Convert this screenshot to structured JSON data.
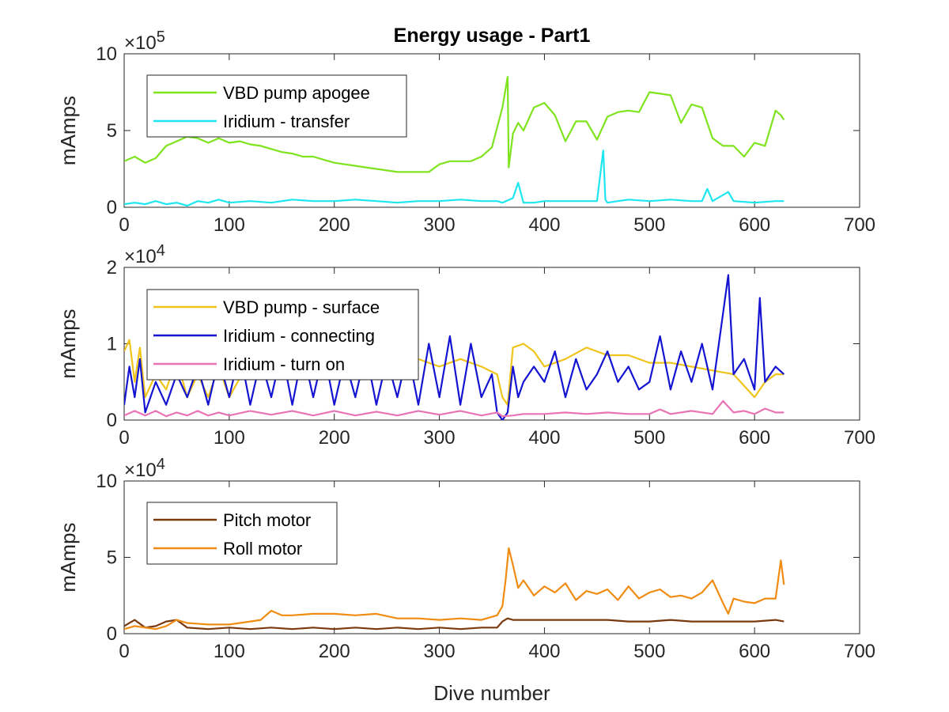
{
  "chart_data": [
    {
      "type": "line",
      "title": "Energy usage - Part1",
      "xlabel": "",
      "ylabel": "mAmps",
      "xlim": [
        0,
        700
      ],
      "ylim": [
        0,
        10
      ],
      "y_multiplier": "×10^5",
      "y_multiplier_base": "×10",
      "y_multiplier_exp": "5",
      "xticks": [
        "0",
        "100",
        "200",
        "300",
        "400",
        "500",
        "600",
        "700"
      ],
      "yticks": [
        "0",
        "5",
        "10"
      ],
      "legend_position": "top-left",
      "series": [
        {
          "name": "VBD pump apogee",
          "color": "#7fe31e",
          "x": [
            0,
            10,
            20,
            30,
            40,
            50,
            60,
            70,
            80,
            90,
            100,
            110,
            120,
            130,
            140,
            150,
            160,
            170,
            180,
            190,
            200,
            210,
            220,
            230,
            240,
            250,
            260,
            270,
            280,
            290,
            300,
            310,
            320,
            330,
            340,
            350,
            360,
            365,
            366,
            370,
            375,
            380,
            390,
            400,
            410,
            420,
            430,
            440,
            450,
            460,
            470,
            480,
            490,
            500,
            510,
            520,
            530,
            540,
            550,
            560,
            570,
            580,
            590,
            600,
            610,
            620,
            625,
            628
          ],
          "y": [
            3.0,
            3.3,
            2.9,
            3.2,
            4.0,
            4.3,
            4.6,
            4.5,
            4.2,
            4.5,
            4.2,
            4.3,
            4.1,
            4.0,
            3.8,
            3.6,
            3.5,
            3.3,
            3.3,
            3.1,
            2.9,
            2.8,
            2.7,
            2.6,
            2.5,
            2.4,
            2.3,
            2.3,
            2.3,
            2.3,
            2.8,
            3.0,
            3.0,
            3.0,
            3.3,
            3.9,
            6.5,
            8.5,
            2.6,
            4.8,
            5.5,
            5.0,
            6.5,
            6.8,
            6.0,
            4.3,
            5.6,
            5.6,
            4.4,
            5.9,
            6.2,
            6.3,
            6.2,
            7.5,
            7.4,
            7.3,
            5.5,
            6.7,
            6.5,
            4.5,
            4.0,
            4.0,
            3.3,
            4.2,
            4.0,
            6.3,
            6.0,
            5.7
          ]
        },
        {
          "name": "Iridium - transfer",
          "color": "#1ee6f0",
          "x": [
            0,
            10,
            20,
            30,
            40,
            50,
            60,
            70,
            80,
            90,
            100,
            120,
            140,
            160,
            180,
            200,
            220,
            240,
            260,
            280,
            300,
            320,
            340,
            355,
            360,
            370,
            375,
            380,
            390,
            400,
            420,
            440,
            450,
            456,
            458,
            460,
            470,
            480,
            500,
            520,
            540,
            550,
            555,
            560,
            575,
            580,
            600,
            620,
            628
          ],
          "y": [
            0.2,
            0.3,
            0.2,
            0.4,
            0.2,
            0.3,
            0.1,
            0.4,
            0.3,
            0.5,
            0.3,
            0.4,
            0.3,
            0.5,
            0.4,
            0.4,
            0.5,
            0.4,
            0.3,
            0.4,
            0.4,
            0.5,
            0.4,
            0.4,
            0.3,
            0.6,
            1.6,
            0.3,
            0.3,
            0.4,
            0.4,
            0.4,
            0.4,
            3.7,
            0.5,
            0.3,
            0.4,
            0.5,
            0.4,
            0.5,
            0.4,
            0.4,
            1.2,
            0.4,
            1.0,
            0.4,
            0.3,
            0.4,
            0.4
          ]
        }
      ]
    },
    {
      "type": "line",
      "title": "",
      "xlabel": "",
      "ylabel": "mAmps",
      "xlim": [
        0,
        700
      ],
      "ylim": [
        0,
        2
      ],
      "y_multiplier": "×10^4",
      "y_multiplier_base": "×10",
      "y_multiplier_exp": "4",
      "xticks": [
        "0",
        "100",
        "200",
        "300",
        "400",
        "500",
        "600",
        "700"
      ],
      "yticks": [
        "0",
        "1",
        "2"
      ],
      "legend_position": "top-left",
      "series": [
        {
          "name": "VBD pump - surface",
          "color": "#f0c41a",
          "x": [
            0,
            5,
            10,
            15,
            20,
            30,
            40,
            50,
            60,
            70,
            80,
            90,
            100,
            120,
            140,
            160,
            180,
            200,
            220,
            240,
            260,
            280,
            300,
            320,
            340,
            355,
            360,
            365,
            370,
            380,
            390,
            400,
            420,
            440,
            460,
            480,
            500,
            520,
            540,
            560,
            580,
            600,
            610,
            620,
            628
          ],
          "y": [
            0.9,
            1.05,
            0.5,
            0.95,
            0.3,
            0.6,
            0.4,
            0.8,
            0.3,
            0.6,
            0.3,
            0.7,
            0.3,
            0.8,
            0.6,
            0.9,
            0.7,
            0.85,
            0.7,
            0.85,
            0.6,
            0.8,
            0.7,
            0.8,
            0.7,
            0.6,
            0.3,
            0.2,
            0.95,
            1.0,
            0.9,
            0.7,
            0.8,
            0.95,
            0.85,
            0.85,
            0.75,
            0.75,
            0.7,
            0.65,
            0.6,
            0.3,
            0.5,
            0.6,
            0.6
          ]
        },
        {
          "name": "Iridium - connecting",
          "color": "#1414d2",
          "x": [
            0,
            5,
            10,
            15,
            20,
            30,
            40,
            50,
            60,
            70,
            80,
            90,
            100,
            110,
            120,
            130,
            140,
            150,
            160,
            170,
            180,
            190,
            200,
            210,
            220,
            230,
            240,
            250,
            260,
            270,
            280,
            290,
            300,
            310,
            320,
            330,
            340,
            350,
            355,
            360,
            365,
            370,
            375,
            380,
            390,
            400,
            410,
            420,
            430,
            440,
            450,
            460,
            470,
            480,
            490,
            500,
            510,
            520,
            530,
            540,
            550,
            560,
            570,
            575,
            580,
            590,
            600,
            605,
            610,
            620,
            628
          ],
          "y": [
            0.2,
            0.7,
            0.3,
            0.8,
            0.1,
            0.5,
            0.2,
            0.6,
            0.3,
            0.7,
            0.2,
            0.8,
            0.3,
            0.9,
            0.2,
            0.8,
            0.3,
            0.9,
            0.2,
            0.9,
            0.3,
            0.9,
            0.2,
            0.8,
            0.3,
            0.9,
            0.2,
            0.8,
            0.3,
            0.9,
            0.2,
            1.0,
            0.3,
            1.1,
            0.2,
            1.0,
            0.3,
            0.6,
            0.1,
            0.0,
            0.1,
            0.7,
            0.3,
            0.5,
            0.7,
            0.5,
            0.9,
            0.3,
            0.8,
            0.4,
            0.6,
            0.9,
            0.5,
            0.7,
            0.4,
            0.5,
            1.1,
            0.4,
            0.9,
            0.5,
            1.0,
            0.4,
            1.4,
            1.9,
            0.6,
            0.8,
            0.4,
            1.6,
            0.5,
            0.7,
            0.6
          ]
        },
        {
          "name": "Iridium - turn on",
          "color": "#e873b5",
          "x": [
            0,
            10,
            20,
            30,
            40,
            50,
            60,
            70,
            80,
            90,
            100,
            120,
            140,
            160,
            180,
            200,
            220,
            240,
            260,
            280,
            300,
            320,
            340,
            355,
            360,
            370,
            380,
            400,
            420,
            440,
            460,
            480,
            500,
            510,
            520,
            540,
            560,
            570,
            580,
            590,
            600,
            610,
            620,
            628
          ],
          "y": [
            0.06,
            0.12,
            0.06,
            0.12,
            0.05,
            0.1,
            0.06,
            0.12,
            0.06,
            0.1,
            0.06,
            0.12,
            0.07,
            0.12,
            0.06,
            0.12,
            0.06,
            0.11,
            0.06,
            0.12,
            0.07,
            0.12,
            0.06,
            0.1,
            0.05,
            0.06,
            0.08,
            0.08,
            0.1,
            0.08,
            0.1,
            0.08,
            0.08,
            0.14,
            0.08,
            0.12,
            0.08,
            0.25,
            0.1,
            0.12,
            0.08,
            0.15,
            0.1,
            0.1
          ]
        }
      ]
    },
    {
      "type": "line",
      "title": "",
      "xlabel": "Dive number",
      "ylabel": "mAmps",
      "xlim": [
        0,
        700
      ],
      "ylim": [
        0,
        10
      ],
      "y_multiplier": "×10^4",
      "y_multiplier_base": "×10",
      "y_multiplier_exp": "4",
      "xticks": [
        "0",
        "100",
        "200",
        "300",
        "400",
        "500",
        "600",
        "700"
      ],
      "yticks": [
        "0",
        "5",
        "10"
      ],
      "legend_position": "top-left",
      "series": [
        {
          "name": "Pitch motor",
          "color": "#7a3a0e",
          "x": [
            0,
            10,
            20,
            30,
            40,
            50,
            60,
            80,
            100,
            120,
            140,
            160,
            180,
            200,
            220,
            240,
            260,
            280,
            300,
            320,
            340,
            355,
            360,
            365,
            370,
            380,
            400,
            420,
            440,
            460,
            480,
            500,
            520,
            540,
            560,
            580,
            600,
            620,
            628
          ],
          "y": [
            0.5,
            0.9,
            0.4,
            0.5,
            0.8,
            0.9,
            0.4,
            0.3,
            0.4,
            0.3,
            0.4,
            0.3,
            0.4,
            0.3,
            0.4,
            0.3,
            0.4,
            0.3,
            0.4,
            0.3,
            0.4,
            0.4,
            0.8,
            1.0,
            0.9,
            0.9,
            0.9,
            0.9,
            0.9,
            0.9,
            0.8,
            0.8,
            0.9,
            0.8,
            0.8,
            0.8,
            0.8,
            0.9,
            0.8
          ]
        },
        {
          "name": "Roll motor",
          "color": "#f08c12",
          "x": [
            0,
            10,
            20,
            30,
            40,
            50,
            60,
            80,
            100,
            120,
            130,
            140,
            150,
            160,
            180,
            200,
            220,
            240,
            260,
            280,
            300,
            320,
            340,
            355,
            360,
            363,
            366,
            370,
            375,
            380,
            390,
            400,
            410,
            420,
            430,
            440,
            450,
            460,
            470,
            480,
            490,
            500,
            510,
            520,
            530,
            540,
            550,
            560,
            570,
            575,
            580,
            590,
            600,
            610,
            620,
            625,
            628
          ],
          "y": [
            0.3,
            0.5,
            0.4,
            0.3,
            0.5,
            0.9,
            0.7,
            0.6,
            0.6,
            0.8,
            0.9,
            1.5,
            1.2,
            1.2,
            1.3,
            1.3,
            1.2,
            1.3,
            1.0,
            1.0,
            0.9,
            1.0,
            0.9,
            1.2,
            1.8,
            3.5,
            5.6,
            4.5,
            3.0,
            3.5,
            2.5,
            3.1,
            2.7,
            3.3,
            2.2,
            2.8,
            2.6,
            2.9,
            2.2,
            3.1,
            2.3,
            2.7,
            2.9,
            2.4,
            2.5,
            2.3,
            2.7,
            3.5,
            2.0,
            1.3,
            2.3,
            2.1,
            2.0,
            2.3,
            2.3,
            4.8,
            3.2
          ]
        }
      ]
    }
  ]
}
